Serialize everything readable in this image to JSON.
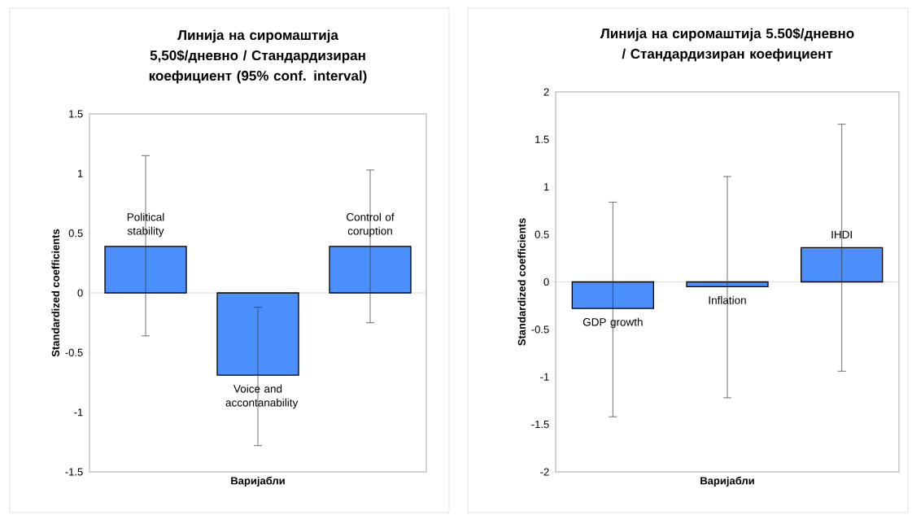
{
  "chart_data": [
    {
      "type": "bar",
      "title": "Линија на сиромаштија 5,50$/дневно / Стандардизиран коефициент (95% conf. interval)",
      "xlabel": "Варијабли",
      "ylabel": "Standardized coefficients",
      "categories": [
        "Political stability",
        "Voice and accontanability",
        "Control of coruption"
      ],
      "values": [
        0.39,
        -0.69,
        0.39
      ],
      "errors": [
        [
          -0.36,
          1.15
        ],
        [
          -1.28,
          -0.12
        ],
        [
          -0.25,
          1.03
        ]
      ],
      "color": "#4a8ffb",
      "ylim": [
        -1.5,
        1.5
      ],
      "yticks": [
        -1.5,
        -1,
        -0.5,
        0,
        0.5,
        1,
        1.5
      ]
    },
    {
      "type": "bar",
      "title": "Линија на сиромаштија 5.50$/дневно / Стандардизиран коефициент",
      "xlabel": "Варијабли",
      "ylabel": "Standardized coefficients",
      "categories": [
        "GDP growth",
        "Inflation",
        "IHDI"
      ],
      "values": [
        -0.28,
        -0.05,
        0.36
      ],
      "errors": [
        [
          -1.42,
          0.84
        ],
        [
          -1.22,
          1.11
        ],
        [
          -0.94,
          1.66
        ]
      ],
      "color": "#4a8ffb",
      "ylim": [
        -2,
        2
      ],
      "yticks": [
        -2,
        -1.5,
        -1,
        -0.5,
        0,
        0.5,
        1,
        1.5,
        2
      ]
    }
  ]
}
